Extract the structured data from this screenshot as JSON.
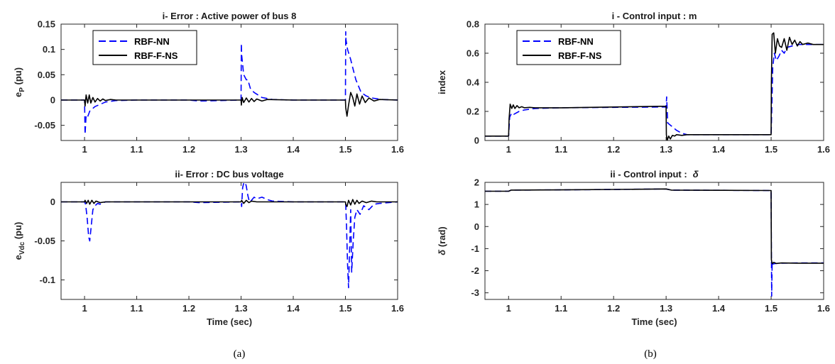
{
  "colors": {
    "rbf_nn": "#0000ff",
    "rbf_f_ns": "#000000",
    "axis": "#262626"
  },
  "captions": {
    "left": "(a)",
    "right": "(b)"
  },
  "chart_data": [
    {
      "type": "line",
      "title": "i- Error : Active power of bus 8",
      "xlabel": "",
      "ylabel_main": "e",
      "ylabel_sub": "P",
      "ylabel_unit": " (pu)",
      "xlim": [
        0.955,
        1.6
      ],
      "ylim": [
        -0.08,
        0.15
      ],
      "xticks": [
        "1",
        "1.1",
        "1.2",
        "1.3",
        "1.4",
        "1.5",
        "1.6"
      ],
      "xtick_values": [
        1,
        1.1,
        1.2,
        1.3,
        1.4,
        1.5,
        1.6
      ],
      "yticks": [
        "0.15",
        "0.1",
        "0.05",
        "0",
        "-0.05"
      ],
      "ytick_values": [
        0.15,
        0.1,
        0.05,
        0,
        -0.05
      ],
      "legend": {
        "position": "top-left",
        "entries": [
          "RBF-NN",
          "RBF-F-NS"
        ]
      },
      "series": [
        {
          "name": "RBF-NN",
          "style": "dashed",
          "x": [
            0.955,
            1.0,
            1.001,
            1.002,
            1.003,
            1.006,
            1.01,
            1.02,
            1.04,
            1.06,
            1.1,
            1.2,
            1.22,
            1.3,
            1.3005,
            1.301,
            1.305,
            1.31,
            1.313,
            1.318,
            1.325,
            1.34,
            1.36,
            1.4,
            1.5,
            1.5005,
            1.501,
            1.504,
            1.51,
            1.515,
            1.52,
            1.53,
            1.54,
            1.55,
            1.57,
            1.6
          ],
          "y": [
            0,
            0,
            -0.068,
            -0.05,
            -0.03,
            -0.033,
            -0.022,
            -0.013,
            -0.004,
            -0.001,
            0,
            0,
            -0.002,
            0,
            0.112,
            0.09,
            0.05,
            0.04,
            0.04,
            0.022,
            0.015,
            0.005,
            0.001,
            0,
            0,
            0.135,
            0.12,
            0.1,
            0.08,
            0.06,
            0.04,
            0.015,
            0.008,
            0.004,
            0.001,
            0
          ]
        },
        {
          "name": "RBF-F-NS",
          "style": "solid",
          "x": [
            0.955,
            1.0,
            1.001,
            1.003,
            1.006,
            1.009,
            1.012,
            1.016,
            1.02,
            1.025,
            1.03,
            1.035,
            1.04,
            1.05,
            1.06,
            1.1,
            1.2,
            1.3,
            1.3005,
            1.302,
            1.305,
            1.31,
            1.315,
            1.32,
            1.325,
            1.33,
            1.34,
            1.35,
            1.4,
            1.5,
            1.5005,
            1.503,
            1.506,
            1.51,
            1.514,
            1.518,
            1.522,
            1.527,
            1.532,
            1.538,
            1.545,
            1.555,
            1.565,
            1.6
          ],
          "y": [
            0,
            0,
            -0.012,
            0.01,
            -0.006,
            0.01,
            -0.006,
            0.005,
            -0.004,
            0.003,
            -0.002,
            0.002,
            -0.001,
            0.001,
            0,
            0,
            0,
            0,
            -0.01,
            0.005,
            -0.005,
            0.004,
            -0.004,
            0.003,
            -0.003,
            0.002,
            -0.002,
            0.001,
            0,
            0,
            -0.015,
            -0.032,
            -0.01,
            0.015,
            0.005,
            -0.012,
            0.012,
            -0.008,
            0.008,
            -0.005,
            0.004,
            -0.002,
            0.001,
            0
          ]
        }
      ]
    },
    {
      "type": "line",
      "title": "ii- Error : DC bus voltage",
      "xlabel": "Time (sec)",
      "ylabel_main": "e",
      "ylabel_sub": "Vdc",
      "ylabel_unit": " (pu)",
      "xlim": [
        0.955,
        1.6
      ],
      "ylim": [
        -0.125,
        0.025
      ],
      "xticks": [
        "1",
        "1.1",
        "1.2",
        "1.3",
        "1.4",
        "1.5",
        "1.6"
      ],
      "xtick_values": [
        1,
        1.1,
        1.2,
        1.3,
        1.4,
        1.5,
        1.6
      ],
      "yticks": [
        "0",
        "-0.05",
        "-0.1"
      ],
      "ytick_values": [
        0,
        -0.05,
        -0.1
      ],
      "series": [
        {
          "name": "RBF-NN",
          "style": "dashed",
          "x": [
            0.955,
            1.0,
            1.002,
            1.005,
            1.008,
            1.01,
            1.013,
            1.016,
            1.02,
            1.025,
            1.03,
            1.04,
            1.06,
            1.1,
            1.2,
            1.22,
            1.3,
            1.301,
            1.303,
            1.305,
            1.308,
            1.31,
            1.313,
            1.316,
            1.32,
            1.325,
            1.33,
            1.34,
            1.35,
            1.36,
            1.4,
            1.5,
            1.5005,
            1.502,
            1.504,
            1.506,
            1.508,
            1.51,
            1.512,
            1.515,
            1.518,
            1.522,
            1.528,
            1.535,
            1.545,
            1.555,
            1.565,
            1.6
          ],
          "y": [
            0,
            0,
            -0.003,
            -0.02,
            -0.045,
            -0.05,
            -0.03,
            -0.01,
            -0.005,
            -0.002,
            -0.003,
            0,
            0,
            0,
            0,
            -0.001,
            0,
            -0.006,
            0.018,
            0.024,
            0.025,
            0.02,
            0.008,
            0.0,
            0.002,
            0.006,
            0.004,
            0.006,
            0.003,
            0.001,
            0,
            0,
            -0.003,
            -0.03,
            -0.08,
            -0.11,
            -0.06,
            -0.01,
            -0.09,
            -0.05,
            -0.02,
            -0.01,
            -0.016,
            -0.005,
            -0.01,
            -0.003,
            -0.002,
            0
          ]
        },
        {
          "name": "RBF-F-NS",
          "style": "solid",
          "x": [
            0.955,
            1.0,
            1.001,
            1.004,
            1.007,
            1.01,
            1.014,
            1.018,
            1.022,
            1.03,
            1.04,
            1.1,
            1.3,
            1.301,
            1.305,
            1.31,
            1.315,
            1.32,
            1.33,
            1.5,
            1.5005,
            1.503,
            1.506,
            1.51,
            1.514,
            1.518,
            1.522,
            1.526,
            1.532,
            1.54,
            1.55,
            1.56,
            1.6
          ],
          "y": [
            0,
            0,
            0.002,
            -0.002,
            0.002,
            -0.003,
            0.002,
            -0.002,
            0.001,
            -0.001,
            0,
            0,
            0,
            0.002,
            -0.002,
            0.002,
            -0.001,
            0.001,
            0,
            0,
            -0.003,
            -0.006,
            0.002,
            -0.004,
            0.003,
            -0.003,
            0.002,
            -0.002,
            0.001,
            -0.001,
            0.001,
            0,
            0
          ]
        }
      ]
    },
    {
      "type": "line",
      "title": "i - Control input : m",
      "xlabel": "",
      "ylabel_main": "index",
      "xlim": [
        0.955,
        1.6
      ],
      "ylim": [
        0,
        0.8
      ],
      "xticks": [
        "1",
        "1.1",
        "1.2",
        "1.3",
        "1.4",
        "1.5",
        "1.6"
      ],
      "xtick_values": [
        1,
        1.1,
        1.2,
        1.3,
        1.4,
        1.5,
        1.6
      ],
      "yticks": [
        "0.8",
        "0.6",
        "0.4",
        "0.2",
        "0"
      ],
      "ytick_values": [
        0.8,
        0.6,
        0.4,
        0.2,
        0
      ],
      "legend": {
        "position": "top-left",
        "entries": [
          "RBF-NN",
          "RBF-F-NS"
        ]
      },
      "series": [
        {
          "name": "RBF-NN",
          "style": "dashed",
          "x": [
            0.955,
            1.0,
            1.002,
            1.006,
            1.01,
            1.02,
            1.03,
            1.05,
            1.1,
            1.2,
            1.3,
            1.301,
            1.303,
            1.31,
            1.32,
            1.33,
            1.34,
            1.35,
            1.4,
            1.5,
            1.5005,
            1.503,
            1.506,
            1.51,
            1.515,
            1.52,
            1.525,
            1.53,
            1.54,
            1.55,
            1.56,
            1.58,
            1.6
          ],
          "y": [
            0.03,
            0.03,
            0.16,
            0.19,
            0.18,
            0.2,
            0.21,
            0.22,
            0.225,
            0.228,
            0.23,
            0.3,
            0.12,
            0.1,
            0.07,
            0.05,
            0.04,
            0.04,
            0.04,
            0.04,
            0.1,
            0.5,
            0.6,
            0.55,
            0.58,
            0.62,
            0.6,
            0.64,
            0.65,
            0.66,
            0.66,
            0.66,
            0.66
          ]
        },
        {
          "name": "RBF-F-NS",
          "style": "solid",
          "x": [
            0.955,
            1.0,
            1.001,
            1.003,
            1.006,
            1.009,
            1.012,
            1.016,
            1.02,
            1.025,
            1.03,
            1.04,
            1.05,
            1.1,
            1.2,
            1.29,
            1.3,
            1.3005,
            1.302,
            1.305,
            1.308,
            1.312,
            1.316,
            1.32,
            1.33,
            1.34,
            1.35,
            1.4,
            1.5,
            1.5005,
            1.502,
            1.505,
            1.508,
            1.512,
            1.516,
            1.52,
            1.525,
            1.53,
            1.535,
            1.54,
            1.545,
            1.55,
            1.555,
            1.56,
            1.57,
            1.58,
            1.6
          ],
          "y": [
            0.03,
            0.03,
            0.15,
            0.25,
            0.22,
            0.245,
            0.22,
            0.24,
            0.225,
            0.232,
            0.225,
            0.228,
            0.225,
            0.225,
            0.23,
            0.235,
            0.235,
            0.04,
            0.0,
            0.03,
            0.01,
            0.035,
            0.03,
            0.04,
            0.035,
            0.04,
            0.04,
            0.04,
            0.04,
            0.4,
            0.73,
            0.74,
            0.6,
            0.7,
            0.65,
            0.64,
            0.7,
            0.62,
            0.71,
            0.66,
            0.69,
            0.65,
            0.68,
            0.66,
            0.67,
            0.66,
            0.66
          ]
        }
      ]
    },
    {
      "type": "line",
      "title": "ii - Control input :",
      "title_symbol": "δ",
      "xlabel": "Time (sec)",
      "ylabel_symbol": "δ",
      "ylabel_unit": " (rad)",
      "xlim": [
        0.955,
        1.6
      ],
      "ylim": [
        -3.3,
        2.0
      ],
      "xticks": [
        "1",
        "1.1",
        "1.2",
        "1.3",
        "1.4",
        "1.5",
        "1.6"
      ],
      "xtick_values": [
        1,
        1.1,
        1.2,
        1.3,
        1.4,
        1.5,
        1.6
      ],
      "yticks": [
        "2",
        "1",
        "0",
        "-1",
        "-2",
        "-3"
      ],
      "ytick_values": [
        2,
        1,
        0,
        -1,
        -2,
        -3
      ],
      "series": [
        {
          "name": "RBF-NN",
          "style": "dashed",
          "x": [
            0.955,
            1.0,
            1.005,
            1.1,
            1.2,
            1.3,
            1.31,
            1.4,
            1.5,
            1.5005,
            1.501,
            1.502,
            1.503,
            1.506,
            1.52,
            1.55,
            1.6
          ],
          "y": [
            1.6,
            1.6,
            1.65,
            1.66,
            1.68,
            1.7,
            1.65,
            1.64,
            1.63,
            -1.0,
            -3.15,
            -1.6,
            -1.7,
            -1.68,
            -1.66,
            -1.65,
            -1.65
          ]
        },
        {
          "name": "RBF-F-NS",
          "style": "solid",
          "x": [
            0.955,
            1.0,
            1.005,
            1.1,
            1.2,
            1.3,
            1.31,
            1.4,
            1.5,
            1.5005,
            1.502,
            1.505,
            1.51,
            1.52,
            1.55,
            1.6
          ],
          "y": [
            1.6,
            1.6,
            1.65,
            1.66,
            1.68,
            1.7,
            1.65,
            1.64,
            1.63,
            -1.5,
            -1.68,
            -1.62,
            -1.67,
            -1.65,
            -1.66,
            -1.66
          ]
        }
      ]
    }
  ]
}
